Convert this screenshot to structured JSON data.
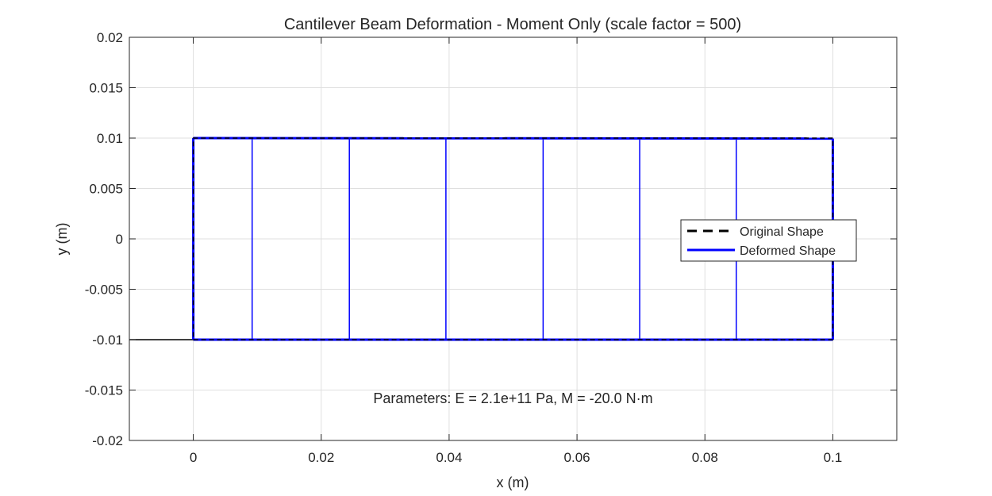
{
  "chart_data": {
    "type": "line",
    "title": "Cantilever Beam Deformation - Moment Only (scale factor = 500)",
    "xlabel": "x (m)",
    "ylabel": "y (m)",
    "xlim": [
      -0.01,
      0.11
    ],
    "ylim": [
      -0.02,
      0.02
    ],
    "xticks": [
      0,
      0.02,
      0.04,
      0.06,
      0.08,
      0.1
    ],
    "xtick_labels": [
      "0",
      "0.02",
      "0.04",
      "0.06",
      "0.08",
      "0.1"
    ],
    "yticks": [
      -0.02,
      -0.015,
      -0.01,
      -0.005,
      0,
      0.005,
      0.01,
      0.015,
      0.02
    ],
    "ytick_labels": [
      "-0.02",
      "-0.015",
      "-0.01",
      "-0.005",
      "0",
      "0.005",
      "0.01",
      "0.015",
      "0.02"
    ],
    "grid": true,
    "legend_position": "right",
    "series": [
      {
        "name": "Original Shape",
        "style": "dashed",
        "color": "#000000",
        "x": [
          0,
          0.1,
          0.1,
          0,
          0
        ],
        "y": [
          -0.01,
          -0.01,
          0.01,
          0.01,
          -0.01
        ]
      },
      {
        "name": "Deformed Shape",
        "style": "solid",
        "color": "#0000ff",
        "top": {
          "x": [
            0,
            0.1
          ],
          "y": [
            0.01,
            0.00995
          ]
        },
        "bottom": {
          "x": [
            0,
            0.1
          ],
          "y": [
            -0.01,
            -0.01
          ]
        },
        "left_edge_x": 0,
        "right_edge_x": 0.1,
        "internal_lines_x": [
          0.0092,
          0.0244,
          0.0395,
          0.0547,
          0.0698,
          0.0849
        ]
      }
    ],
    "support_line": {
      "x": [
        -0.01,
        0
      ],
      "y": [
        -0.01,
        -0.01
      ],
      "color": "#000000"
    },
    "annotation": {
      "text": "Parameters: E = 2.1e+11 Pa, M = -20.0 N·m",
      "x": 0.05,
      "y": -0.0163
    }
  }
}
